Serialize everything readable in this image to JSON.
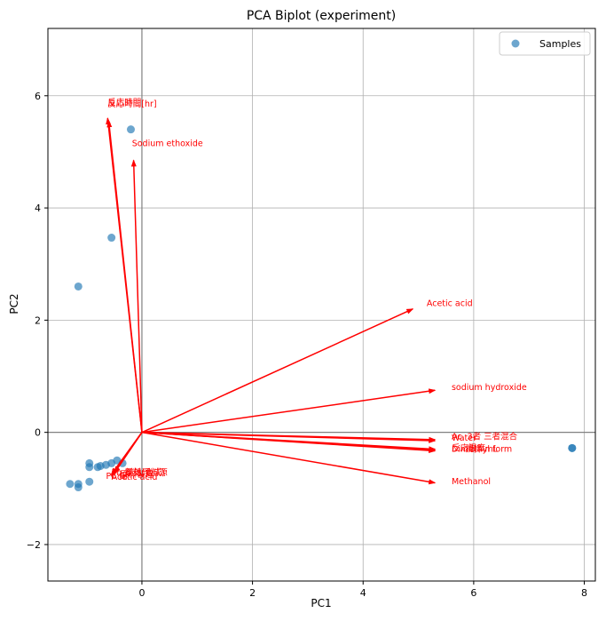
{
  "chart_data": {
    "type": "scatter",
    "title": "PCA Biplot (experiment)",
    "xlabel": "PC1",
    "ylabel": "PC2",
    "xlim": [
      -1.7,
      8.2
    ],
    "ylim": [
      -2.65,
      7.2
    ],
    "xticks": [
      0,
      2,
      4,
      6,
      8
    ],
    "yticks": [
      -2,
      0,
      2,
      4,
      6
    ],
    "grid": true,
    "zero_lines": true,
    "legend": {
      "position": "top-right",
      "entries": [
        "Samples"
      ]
    },
    "colors": {
      "points": "#1f77b4",
      "arrows": "#ff0000",
      "grid": "#b0b0b0",
      "zero_lines": "#808080"
    },
    "series": [
      {
        "name": "Samples",
        "points": [
          [
            -1.3,
            -0.92
          ],
          [
            -1.15,
            -0.92
          ],
          [
            -1.15,
            -0.98
          ],
          [
            -0.95,
            -0.88
          ],
          [
            -0.95,
            -0.55
          ],
          [
            -0.95,
            -0.62
          ],
          [
            -0.8,
            -0.62
          ],
          [
            -0.75,
            -0.6
          ],
          [
            -0.65,
            -0.58
          ],
          [
            -0.55,
            -0.55
          ],
          [
            -0.45,
            -0.5
          ],
          [
            -0.35,
            -0.55
          ],
          [
            -1.15,
            2.6
          ],
          [
            -0.55,
            3.47
          ],
          [
            -0.2,
            5.4
          ],
          [
            7.78,
            -0.28
          ],
          [
            7.78,
            -0.28
          ]
        ]
      }
    ],
    "loadings": [
      {
        "label": "反応時間[hr]",
        "x": -0.6,
        "y": 5.55,
        "lx": -0.62,
        "ly": 5.85
      },
      {
        "label": "反応時間",
        "x": -0.62,
        "y": 5.6,
        "lx": -0.62,
        "ly": 5.88
      },
      {
        "label": "Sodium ethoxide",
        "x": -0.15,
        "y": 4.85,
        "lx": -0.18,
        "ly": 5.15
      },
      {
        "label": "Acetic acid",
        "x": 4.9,
        "y": 2.2,
        "lx": 5.15,
        "ly": 2.3
      },
      {
        "label": "sodium hydroxide",
        "x": 5.3,
        "y": 0.75,
        "lx": 5.6,
        "ly": 0.8
      },
      {
        "label": "Water",
        "x": 5.3,
        "y": -0.13,
        "lx": 5.6,
        "ly": -0.1
      },
      {
        "label": "Ac. 3者 三者混合",
        "x": 5.3,
        "y": -0.15,
        "lx": 5.6,
        "ly": -0.08
      },
      {
        "label": "反応温度",
        "x": 5.3,
        "y": -0.3,
        "lx": 5.6,
        "ly": -0.28
      },
      {
        "label": "Dimethyl form",
        "x": 5.3,
        "y": -0.32,
        "lx": 5.6,
        "ly": -0.3
      },
      {
        "label": "攪拌 mL",
        "x": 5.3,
        "y": -0.33,
        "lx": 5.85,
        "ly": -0.3
      },
      {
        "label": "Methanol",
        "x": 5.3,
        "y": -0.9,
        "lx": 5.6,
        "ly": -0.88
      },
      {
        "label": "Pb 鉛",
        "x": -0.55,
        "y": -0.75,
        "lx": -0.65,
        "ly": -0.78
      },
      {
        "label": "Pb 原料(合成)",
        "x": -0.55,
        "y": -0.75,
        "lx": -0.55,
        "ly": -0.72
      },
      {
        "label": "前処理料源",
        "x": -0.5,
        "y": -0.72,
        "lx": -0.3,
        "ly": -0.72
      },
      {
        "label": "原料製造",
        "x": -0.5,
        "y": -0.73,
        "lx": -0.4,
        "ly": -0.75
      },
      {
        "label": "Acetic acid",
        "x": -0.55,
        "y": -0.78,
        "lx": -0.55,
        "ly": -0.8
      }
    ]
  }
}
